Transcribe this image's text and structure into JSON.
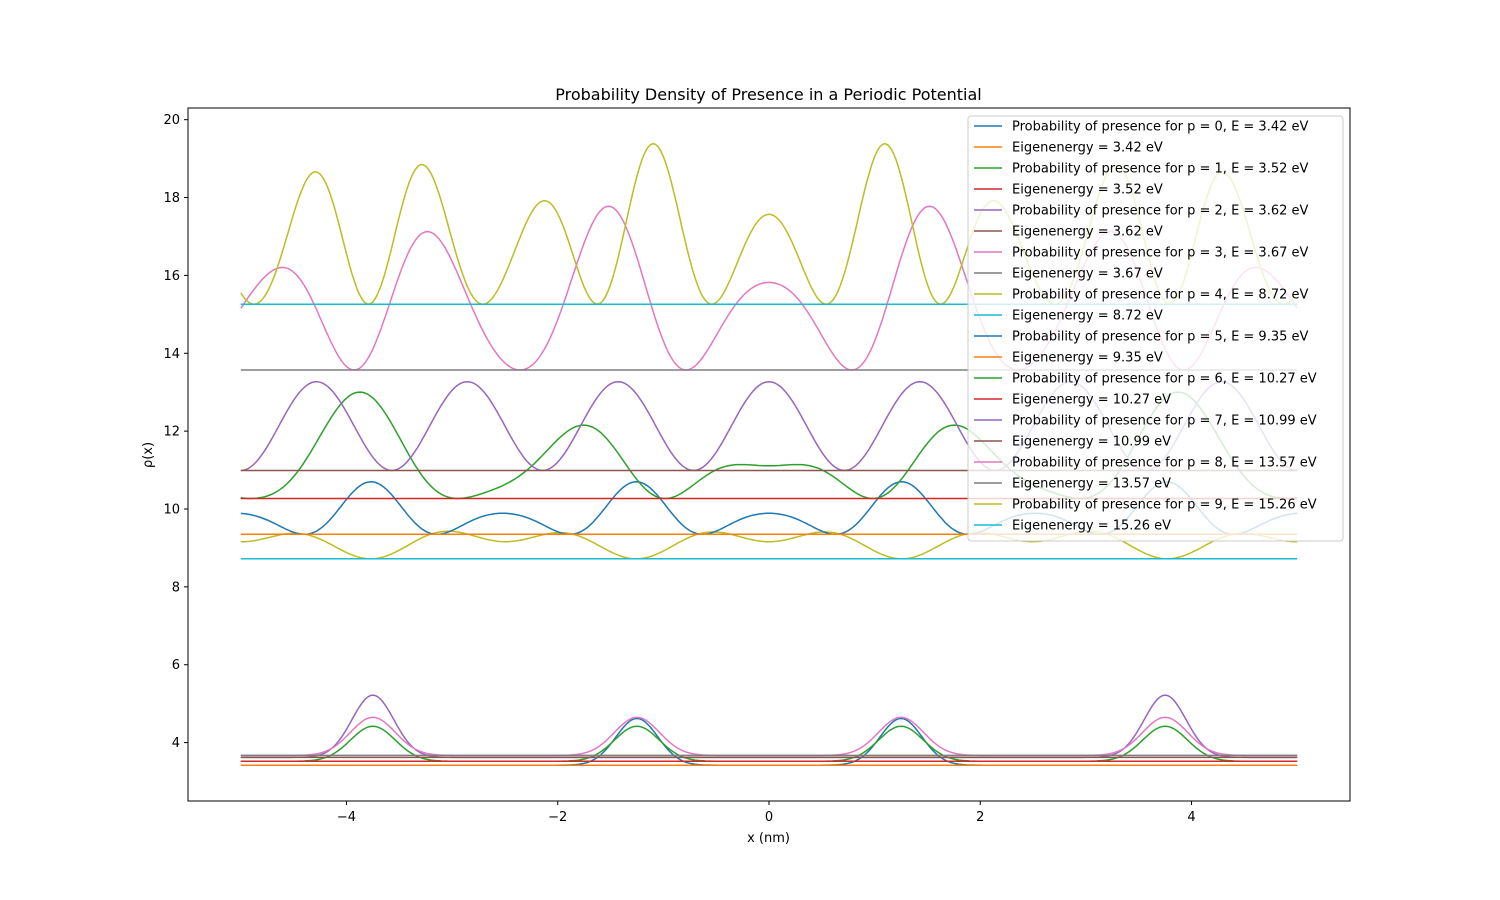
{
  "chart_data": {
    "type": "line",
    "title": "Probability Density of Presence in a Periodic Potential",
    "xlabel": "x (nm)",
    "ylabel": "ρ(x)",
    "xlim": [
      -5.5,
      5.5
    ],
    "ylim": [
      2.5,
      20.3
    ],
    "x_range": [
      -5,
      5
    ],
    "xticks": [
      -4,
      -2,
      0,
      2,
      4
    ],
    "xtick_labels": [
      "−4",
      "−2",
      "0",
      "2",
      "4"
    ],
    "yticks": [
      4,
      6,
      8,
      10,
      12,
      14,
      16,
      18,
      20
    ],
    "ytick_labels": [
      "4",
      "6",
      "8",
      "10",
      "12",
      "14",
      "16",
      "18",
      "20"
    ],
    "grid": false,
    "legend_position": "upper-right",
    "period_nm": 2.5,
    "series": [
      {
        "name": "Probability of presence for p = 0, E = 3.42 eV",
        "kind": "density",
        "color": "#1f77b4",
        "energy": 3.42,
        "amp": 1.2,
        "mode": "gauss",
        "width": 0.28,
        "centers": [
          -1.25,
          1.25
        ],
        "shift": 0.0
      },
      {
        "name": "Eigenenergy = 3.42 eV",
        "kind": "energy",
        "color": "#ff7f0e",
        "energy": 3.42
      },
      {
        "name": "Probability of presence for p = 1, E = 3.52 eV",
        "kind": "density",
        "color": "#2ca02c",
        "energy": 3.52,
        "amp": 0.9,
        "mode": "gauss",
        "width": 0.3,
        "centers": [
          -3.75,
          -1.25,
          1.25,
          3.75
        ],
        "shift": 0.0
      },
      {
        "name": "Eigenenergy = 3.52 eV",
        "kind": "energy",
        "color": "#d62728",
        "energy": 3.52
      },
      {
        "name": "Probability of presence for p = 2, E = 3.62 eV",
        "kind": "density",
        "color": "#9467bd",
        "energy": 3.62,
        "amp": 1.6,
        "mode": "gauss",
        "width": 0.28,
        "centers": [
          -3.75,
          3.75
        ],
        "shift": 0.0
      },
      {
        "name": "Eigenenergy = 3.62 eV",
        "kind": "energy",
        "color": "#8c564b",
        "energy": 3.62
      },
      {
        "name": "Probability of presence for p = 3, E = 3.67 eV",
        "kind": "density",
        "color": "#e377c2",
        "energy": 3.67,
        "amp": 0.98,
        "mode": "gauss",
        "width": 0.3,
        "centers": [
          -3.75,
          -1.25,
          1.25,
          3.75
        ],
        "shift": 0.0
      },
      {
        "name": "Eigenenergy = 3.67 eV",
        "kind": "energy",
        "color": "#7f7f7f",
        "energy": 3.67
      },
      {
        "name": "Probability of presence for p = 4, E = 8.72 eV",
        "kind": "density",
        "color": "#bcbd22",
        "energy": 8.72,
        "amp": 2.2,
        "mode": "sin",
        "k": 1.25,
        "envelope": 0.8
      },
      {
        "name": "Eigenenergy = 8.72 eV",
        "kind": "energy",
        "color": "#17becf",
        "energy": 8.72
      },
      {
        "name": "Probability of presence for p = 5, E = 9.35 eV",
        "kind": "density",
        "color": "#1f77b4",
        "energy": 9.35,
        "amp": 1.35,
        "mode": "sin",
        "k": 2.5,
        "envelope": 0.6
      },
      {
        "name": "Eigenenergy = 9.35 eV",
        "kind": "energy",
        "color": "#ff7f0e",
        "energy": 9.35
      },
      {
        "name": "Probability of presence for p = 6, E = 10.27 eV",
        "kind": "density",
        "color": "#2ca02c",
        "energy": 10.27,
        "amp": 2.8,
        "mode": "sin",
        "k": 1.6,
        "envelope": 0.7
      },
      {
        "name": "Eigenenergy = 10.27 eV",
        "kind": "energy",
        "color": "#d62728",
        "energy": 10.27
      },
      {
        "name": "Probability of presence for p = 7, E = 10.99 eV",
        "kind": "density",
        "color": "#9467bd",
        "energy": 10.99,
        "amp": 2.28,
        "mode": "sin",
        "k": 2.2,
        "envelope": 0.0
      },
      {
        "name": "Eigenenergy = 10.99 eV",
        "kind": "energy",
        "color": "#8c564b",
        "energy": 10.99
      },
      {
        "name": "Probability of presence for p = 8, E = 13.57 eV",
        "kind": "density",
        "color": "#e377c2",
        "energy": 13.57,
        "amp": 4.5,
        "mode": "sin",
        "k": 2.0,
        "envelope": 0.5
      },
      {
        "name": "Eigenenergy = 13.57 eV",
        "kind": "energy",
        "color": "#7f7f7f",
        "energy": 13.57
      },
      {
        "name": "Probability of presence for p = 9, E = 15.26 eV",
        "kind": "density",
        "color": "#bcbd22",
        "energy": 15.26,
        "amp": 4.2,
        "mode": "sin",
        "k": 2.9,
        "envelope": 0.45
      },
      {
        "name": "Eigenenergy = 15.26 eV",
        "kind": "energy",
        "color": "#17becf",
        "energy": 15.26
      }
    ]
  }
}
